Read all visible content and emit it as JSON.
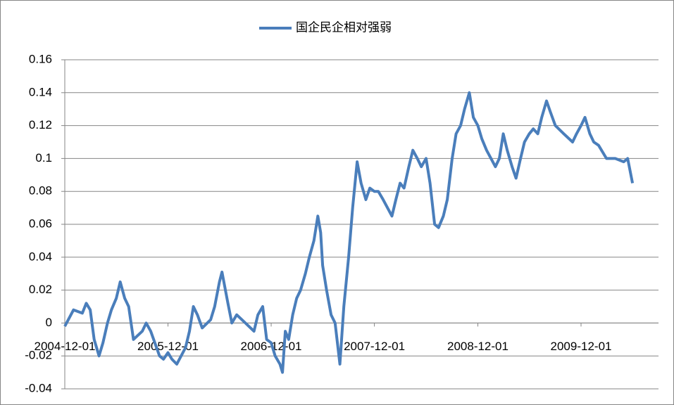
{
  "chart_data": {
    "type": "line",
    "legend": "top",
    "grid": true,
    "ylim": [
      -0.04,
      0.16
    ],
    "yticks": [
      -0.04,
      -0.02,
      0,
      0.02,
      0.04,
      0.06,
      0.08,
      0.1,
      0.12,
      0.14,
      0.16
    ],
    "xlim": [
      "2004-12-01",
      "2010-09-01"
    ],
    "xticks": [
      "2004-12-01",
      "2005-12-01",
      "2006-12-01",
      "2007-12-01",
      "2008-12-01",
      "2009-12-01"
    ],
    "x": [
      "2004-12-01",
      "2005-01-01",
      "2005-02-01",
      "2005-02-15",
      "2005-03-01",
      "2005-03-15",
      "2005-04-01",
      "2005-04-15",
      "2005-05-01",
      "2005-05-15",
      "2005-06-01",
      "2005-06-15",
      "2005-07-01",
      "2005-07-15",
      "2005-08-01",
      "2005-09-01",
      "2005-09-15",
      "2005-10-01",
      "2005-11-01",
      "2005-11-15",
      "2005-12-01",
      "2005-12-15",
      "2006-01-01",
      "2006-02-01",
      "2006-02-15",
      "2006-03-01",
      "2006-03-15",
      "2006-04-01",
      "2006-05-01",
      "2006-05-15",
      "2006-06-01",
      "2006-06-10",
      "2006-07-01",
      "2006-07-15",
      "2006-08-01",
      "2006-09-01",
      "2006-10-01",
      "2006-10-15",
      "2006-11-01",
      "2006-11-15",
      "2006-12-01",
      "2006-12-15",
      "2007-01-01",
      "2007-01-10",
      "2007-01-20",
      "2007-02-01",
      "2007-02-15",
      "2007-03-01",
      "2007-03-15",
      "2007-04-01",
      "2007-04-15",
      "2007-05-01",
      "2007-05-15",
      "2007-05-25",
      "2007-06-01",
      "2007-06-15",
      "2007-07-01",
      "2007-07-15",
      "2007-08-01",
      "2007-08-15",
      "2007-09-01",
      "2007-09-15",
      "2007-10-01",
      "2007-10-15",
      "2007-11-01",
      "2007-11-15",
      "2007-12-01",
      "2007-12-15",
      "2008-01-01",
      "2008-02-01",
      "2008-02-15",
      "2008-03-01",
      "2008-03-15",
      "2008-04-01",
      "2008-04-15",
      "2008-05-01",
      "2008-05-15",
      "2008-06-01",
      "2008-06-15",
      "2008-07-01",
      "2008-07-15",
      "2008-08-01",
      "2008-08-15",
      "2008-09-01",
      "2008-09-15",
      "2008-10-01",
      "2008-10-15",
      "2008-11-01",
      "2008-11-15",
      "2008-12-01",
      "2008-12-15",
      "2009-01-01",
      "2009-02-01",
      "2009-02-15",
      "2009-03-01",
      "2009-03-15",
      "2009-04-01",
      "2009-04-15",
      "2009-05-01",
      "2009-05-15",
      "2009-06-01",
      "2009-06-15",
      "2009-07-01",
      "2009-07-15",
      "2009-08-01",
      "2009-08-15",
      "2009-09-01",
      "2009-10-01",
      "2009-11-01",
      "2009-11-15",
      "2009-12-01",
      "2009-12-15",
      "2010-01-01",
      "2010-01-15",
      "2010-02-01",
      "2010-03-01",
      "2010-04-01",
      "2010-05-01",
      "2010-05-15",
      "2010-06-01"
    ],
    "series": [
      {
        "name": "国企民企相对强弱",
        "color": "#4a7ebb",
        "values": [
          -0.002,
          0.008,
          0.006,
          0.012,
          0.008,
          -0.01,
          -0.02,
          -0.012,
          0.0,
          0.008,
          0.015,
          0.025,
          0.015,
          0.01,
          -0.01,
          -0.005,
          0.0,
          -0.005,
          -0.02,
          -0.022,
          -0.018,
          -0.022,
          -0.025,
          -0.015,
          -0.005,
          0.01,
          0.005,
          -0.003,
          0.002,
          0.01,
          0.025,
          0.031,
          0.012,
          0.0,
          0.005,
          0.0,
          -0.005,
          0.005,
          0.01,
          -0.01,
          -0.012,
          -0.02,
          -0.025,
          -0.03,
          -0.005,
          -0.01,
          0.005,
          0.015,
          0.02,
          0.03,
          0.04,
          0.05,
          0.065,
          0.055,
          0.035,
          0.02,
          0.005,
          0.0,
          -0.025,
          0.01,
          0.04,
          0.07,
          0.098,
          0.085,
          0.075,
          0.082,
          0.08,
          0.08,
          0.075,
          0.065,
          0.075,
          0.085,
          0.082,
          0.095,
          0.105,
          0.1,
          0.095,
          0.1,
          0.085,
          0.06,
          0.058,
          0.065,
          0.075,
          0.1,
          0.115,
          0.12,
          0.13,
          0.14,
          0.125,
          0.12,
          0.112,
          0.105,
          0.095,
          0.1,
          0.115,
          0.105,
          0.095,
          0.088,
          0.1,
          0.11,
          0.115,
          0.118,
          0.115,
          0.125,
          0.135,
          0.128,
          0.12,
          0.115,
          0.11,
          0.115,
          0.12,
          0.125,
          0.115,
          0.11,
          0.108,
          0.1,
          0.1,
          0.098,
          0.1,
          0.085
        ]
      }
    ]
  }
}
